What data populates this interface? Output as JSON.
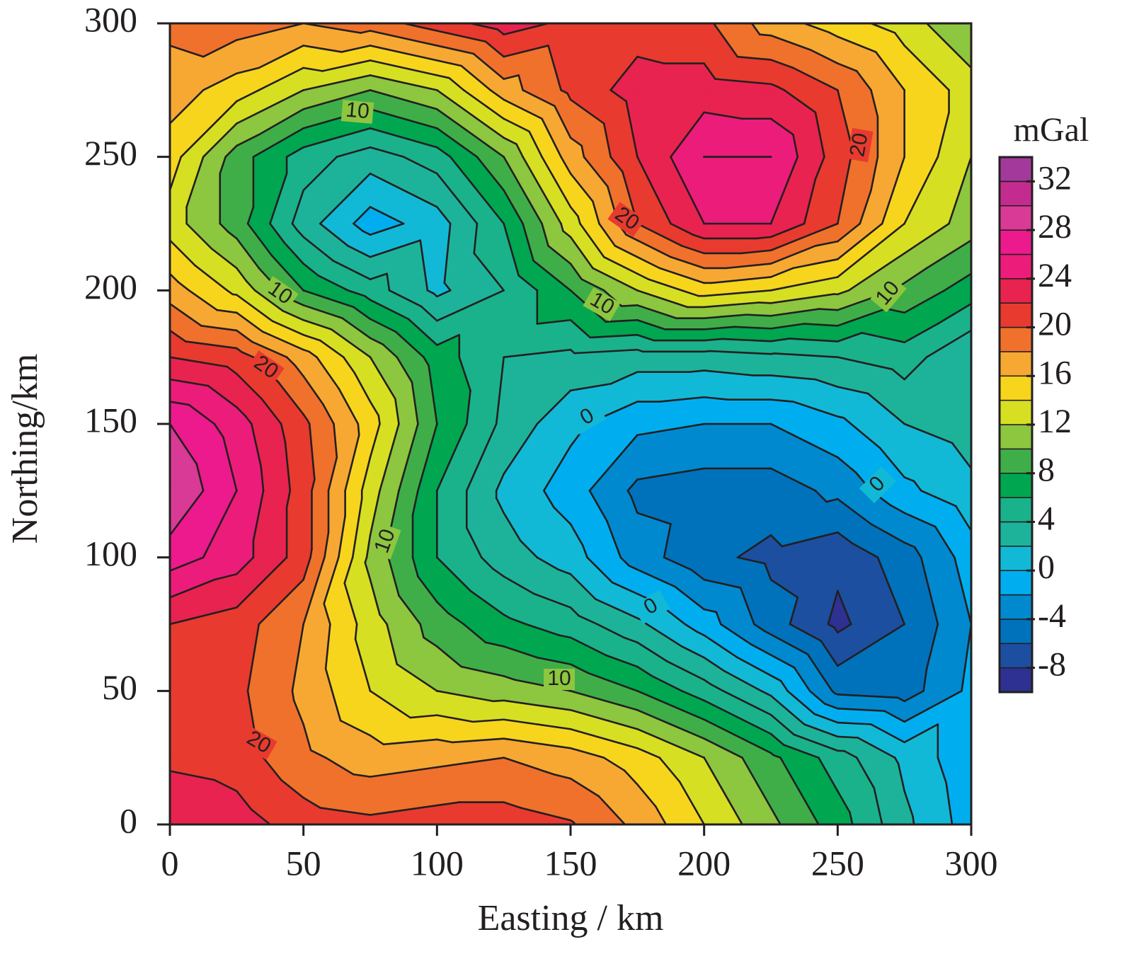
{
  "chart_data": {
    "type": "contour",
    "xlabel": "Easting / km",
    "ylabel": "Northing/km",
    "xlim": [
      0,
      300
    ],
    "ylim": [
      0,
      300
    ],
    "xticks": [
      0,
      50,
      100,
      150,
      200,
      250,
      300
    ],
    "yticks": [
      0,
      50,
      100,
      150,
      200,
      250,
      300
    ],
    "x": [
      0,
      25,
      50,
      75,
      100,
      125,
      150,
      175,
      200,
      225,
      250,
      275,
      300
    ],
    "y": [
      0,
      25,
      50,
      75,
      100,
      125,
      150,
      175,
      200,
      225,
      250,
      275,
      300
    ],
    "z": [
      [
        24,
        23,
        21,
        20.5,
        21,
        21,
        20.2,
        17.5,
        14,
        10.5,
        7,
        2.5,
        -1
      ],
      [
        21.5,
        21,
        18.5,
        17,
        17.5,
        18,
        17,
        15,
        12,
        8.5,
        5,
        1.5,
        -1.5
      ],
      [
        21.5,
        20.5,
        17.5,
        14,
        12,
        11,
        10,
        8,
        5,
        1.5,
        -4.5,
        -5,
        -1.5
      ],
      [
        22,
        21,
        18,
        13,
        9,
        6.5,
        5,
        2.5,
        -1,
        -5,
        -8.5,
        -6,
        -2
      ],
      [
        27,
        25,
        21,
        11.5,
        6,
        3,
        1,
        -3,
        -5.5,
        -6.5,
        -7.5,
        -5,
        -1
      ],
      [
        30,
        26,
        21,
        13,
        6,
        1.5,
        -1,
        -4.5,
        -5,
        -5,
        -3.5,
        -0.5,
        1.5
      ],
      [
        28,
        25,
        20.5,
        15,
        8,
        3.5,
        0.5,
        -1.5,
        -2,
        -2,
        -0.5,
        2,
        3
      ],
      [
        22,
        21,
        17,
        12,
        7,
        4,
        3.5,
        3,
        3,
        3.5,
        4,
        5,
        2
      ],
      [
        17,
        13.5,
        8,
        5,
        1.5,
        4,
        8,
        12,
        15,
        14,
        12.5,
        9.5,
        7
      ],
      [
        13,
        9,
        3,
        -1,
        1,
        6,
        13,
        20,
        24,
        24,
        20,
        14,
        11
      ],
      [
        15,
        9,
        5,
        3,
        5,
        10,
        17,
        22,
        26,
        26,
        21,
        16,
        12
      ],
      [
        17,
        15,
        12,
        10,
        12,
        17,
        20.5,
        23,
        23,
        22.5,
        20,
        16,
        13
      ],
      [
        18.5,
        19,
        18,
        19,
        21,
        23,
        21.5,
        21,
        20.5,
        17,
        15,
        13,
        10
      ]
    ],
    "contour_labels": [
      10,
      20,
      20,
      10,
      10,
      10,
      20,
      0,
      0,
      10,
      0,
      10,
      20
    ],
    "colorbar": {
      "title": "mGal",
      "levels": [
        -10,
        -8,
        -6,
        -4,
        -2,
        0,
        2,
        4,
        6,
        8,
        10,
        12,
        14,
        16,
        18,
        20,
        22,
        24,
        26,
        28,
        30,
        32,
        34
      ],
      "colors": [
        "#2e3192",
        "#1c4fa0",
        "#0072bc",
        "#0089cf",
        "#00aeef",
        "#12b9d6",
        "#1db39b",
        "#1ab28a",
        "#00a650",
        "#3fae49",
        "#8dc63f",
        "#d7df23",
        "#f7d51d",
        "#f7a833",
        "#f0712c",
        "#e83a2f",
        "#e8234f",
        "#ec1c7a",
        "#ec1a8c",
        "#d93a96",
        "#c42b8e",
        "#a3399b"
      ],
      "ticks": [
        -8,
        -4,
        0,
        4,
        8,
        12,
        16,
        20,
        24,
        28,
        32
      ]
    }
  }
}
